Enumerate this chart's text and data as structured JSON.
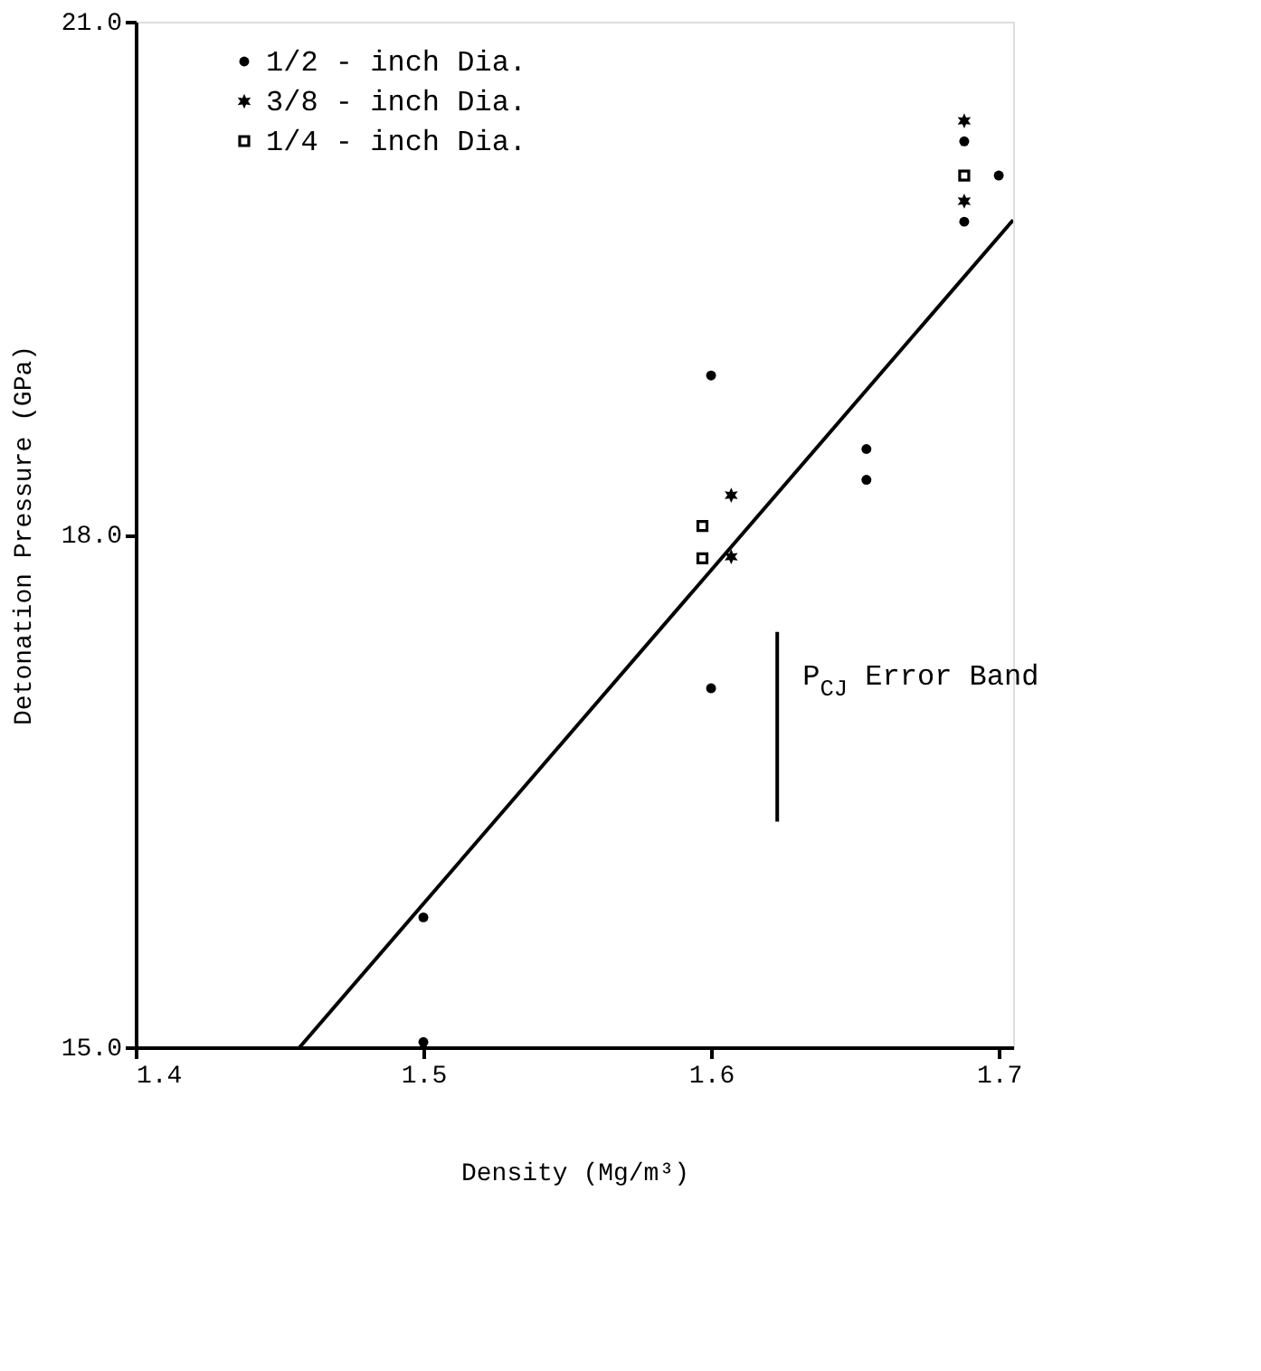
{
  "chart_data": {
    "type": "scatter",
    "xlabel": "Density (Mg/m³)",
    "ylabel": "Detonation Pressure (GPa)",
    "xlim": [
      1.4,
      1.705
    ],
    "ylim": [
      15,
      21
    ],
    "xticks": [
      1.4,
      1.5,
      1.6,
      1.7
    ],
    "yticks": [
      {
        "value": 15,
        "label": "15.0"
      },
      {
        "value": 18,
        "label": "18.0"
      },
      {
        "value": 21,
        "label": "21.0"
      }
    ],
    "grid": false,
    "legend": "top left",
    "series": [
      {
        "name": "1/2 - inch Dia.",
        "color": "#000000",
        "marker": "circle",
        "x": [
          1.5,
          1.5,
          1.6,
          1.6,
          1.654,
          1.654,
          1.688,
          1.688,
          1.7
        ],
        "values": [
          15.03,
          15.76,
          18.93,
          17.1,
          18.5,
          18.32,
          20.3,
          19.83,
          20.1
        ]
      },
      {
        "name": "3/8 - inch Dia.",
        "color": "#000000",
        "marker": "cross",
        "x": [
          1.607,
          1.607,
          1.688,
          1.688
        ],
        "values": [
          18.23,
          17.87,
          20.42,
          19.95
        ]
      },
      {
        "name": "1/4 - inch Dia.",
        "color": "#000000",
        "marker": "square",
        "x": [
          1.597,
          1.597,
          1.688
        ],
        "values": [
          18.05,
          17.86,
          20.1
        ]
      },
      {
        "type": "line",
        "color": "#000000",
        "marker": "none",
        "x": [
          1.457,
          1.705
        ],
        "values": [
          15.0,
          19.84
        ]
      },
      {
        "type": "line",
        "color": "#000000",
        "marker": "none",
        "x": [
          1.623,
          1.623
        ],
        "values": [
          16.32,
          17.43
        ]
      }
    ],
    "annotations": [
      "P$_{CJ}$ Error Band"
    ]
  }
}
